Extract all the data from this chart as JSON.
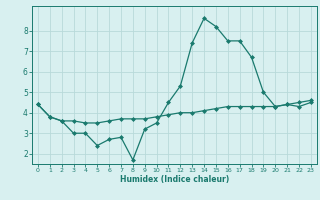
{
  "xlabel": "Humidex (Indice chaleur)",
  "x": [
    0,
    1,
    2,
    3,
    4,
    5,
    6,
    7,
    8,
    9,
    10,
    11,
    12,
    13,
    14,
    15,
    16,
    17,
    18,
    19,
    20,
    21,
    22,
    23
  ],
  "line1": [
    4.4,
    3.8,
    3.6,
    3.0,
    3.0,
    2.4,
    2.7,
    2.8,
    1.7,
    3.2,
    3.5,
    4.5,
    5.3,
    7.4,
    8.6,
    8.2,
    7.5,
    7.5,
    6.7,
    5.0,
    4.3,
    4.4,
    4.3,
    4.5
  ],
  "line2": [
    4.4,
    3.8,
    3.6,
    3.6,
    3.5,
    3.5,
    3.6,
    3.7,
    3.7,
    3.7,
    3.8,
    3.9,
    4.0,
    4.0,
    4.1,
    4.2,
    4.3,
    4.3,
    4.3,
    4.3,
    4.3,
    4.4,
    4.5,
    4.6
  ],
  "color": "#1a7a6e",
  "bg_color": "#d8f0f0",
  "grid_color": "#b8dada",
  "ylim": [
    1.5,
    9.2
  ],
  "xlim": [
    -0.5,
    23.5
  ],
  "yticks": [
    2,
    3,
    4,
    5,
    6,
    7,
    8
  ],
  "xticks": [
    0,
    1,
    2,
    3,
    4,
    5,
    6,
    7,
    8,
    9,
    10,
    11,
    12,
    13,
    14,
    15,
    16,
    17,
    18,
    19,
    20,
    21,
    22,
    23
  ]
}
